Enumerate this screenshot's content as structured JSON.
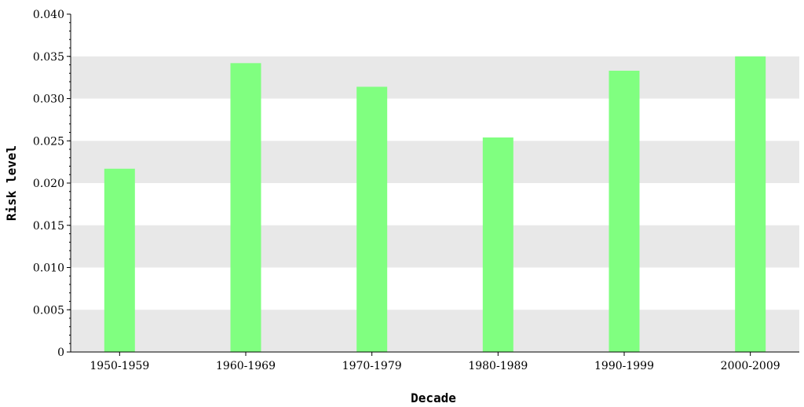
{
  "chart_data": {
    "type": "bar",
    "categories": [
      "1950-1959",
      "1960-1969",
      "1970-1979",
      "1980-1989",
      "1990-1999",
      "2000-2009"
    ],
    "values": [
      0.0217,
      0.0342,
      0.0314,
      0.0254,
      0.0333,
      0.035
    ],
    "title": "",
    "xlabel": "Decade",
    "ylabel": "Risk level",
    "ylim": [
      0,
      0.04
    ],
    "yticks": [
      "0",
      "0.005",
      "0.010",
      "0.015",
      "0.020",
      "0.025",
      "0.030",
      "0.035",
      "0.040"
    ],
    "bar_color": "#80ff80",
    "band_color": "#e8e8e8",
    "grid": "alternating horizontal bands",
    "legend": "none"
  }
}
